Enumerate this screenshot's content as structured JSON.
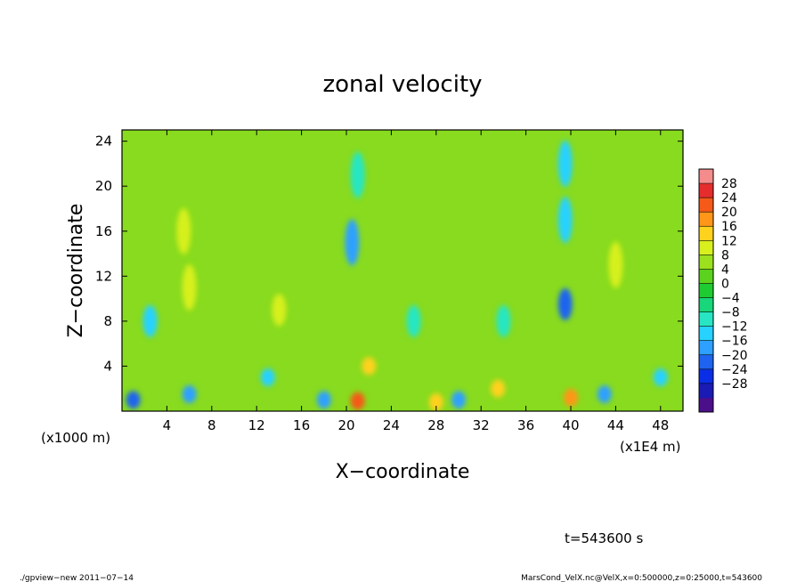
{
  "chart_data": {
    "type": "heatmap",
    "title": "zonal velocity",
    "xlabel": "X−coordinate",
    "ylabel": "Z−coordinate",
    "x_unit": "(x1E4 m)",
    "y_unit": "(x1000 m)",
    "xlim": [
      0,
      50
    ],
    "ylim": [
      0,
      25
    ],
    "x_ticks": [
      4,
      8,
      12,
      16,
      20,
      24,
      28,
      32,
      36,
      40,
      44,
      48
    ],
    "x_tick_labels": [
      "4",
      "8",
      "12",
      "16",
      "20",
      "24",
      "28",
      "32",
      "36",
      "40",
      "44",
      "48"
    ],
    "y_ticks": [
      4,
      8,
      12,
      16,
      20,
      24
    ],
    "y_tick_labels": [
      "4",
      "8",
      "12",
      "16",
      "20",
      "24"
    ],
    "colorbar": {
      "levels": [
        -32,
        -28,
        -24,
        -20,
        -16,
        -12,
        -8,
        -4,
        0,
        4,
        8,
        12,
        16,
        20,
        24,
        28,
        32
      ],
      "labels": [
        "28",
        "24",
        "20",
        "16",
        "12",
        "8",
        "4",
        "0",
        "−4",
        "−8",
        "−12",
        "−16",
        "−20",
        "−24",
        "−28"
      ],
      "colors": [
        "#4b0f8a",
        "#1a1ab4",
        "#0a2de6",
        "#1e64f0",
        "#2ea0ff",
        "#27d2ff",
        "#28e6c3",
        "#18d67a",
        "#1ecc32",
        "#5ad21e",
        "#9be11e",
        "#d7f01e",
        "#ffd21e",
        "#ff9619",
        "#f55a19",
        "#e62d2d",
        "#f58c8c"
      ]
    },
    "features": [
      {
        "x": 21,
        "z": 0.9,
        "value": 24
      },
      {
        "x": 40,
        "z": 1.2,
        "value": 20
      },
      {
        "x": 28,
        "z": 0.8,
        "value": 18
      },
      {
        "x": 6,
        "z": 11,
        "value": 14
      },
      {
        "x": 5.5,
        "z": 16,
        "value": 12
      },
      {
        "x": 44,
        "z": 13,
        "value": 12
      },
      {
        "x": 14,
        "z": 9,
        "value": 12
      },
      {
        "x": 22,
        "z": 4,
        "value": 16
      },
      {
        "x": 33.5,
        "z": 2,
        "value": 16
      },
      {
        "x": 20.5,
        "z": 15,
        "value": -14
      },
      {
        "x": 39.5,
        "z": 9.5,
        "value": -18
      },
      {
        "x": 39.5,
        "z": 17,
        "value": -12
      },
      {
        "x": 39.5,
        "z": 22,
        "value": -10
      },
      {
        "x": 21,
        "z": 21,
        "value": -8
      },
      {
        "x": 1,
        "z": 1,
        "value": -18
      },
      {
        "x": 6,
        "z": 1.5,
        "value": -16
      },
      {
        "x": 30,
        "z": 1,
        "value": -14
      },
      {
        "x": 43,
        "z": 1.5,
        "value": -16
      },
      {
        "x": 18,
        "z": 1,
        "value": -14
      },
      {
        "x": 2.5,
        "z": 8,
        "value": -10
      },
      {
        "x": 26,
        "z": 8,
        "value": -8
      },
      {
        "x": 34,
        "z": 8,
        "value": -8
      },
      {
        "x": 13,
        "z": 3,
        "value": -12
      },
      {
        "x": 48,
        "z": 3,
        "value": -10
      }
    ]
  },
  "annotations": {
    "time": "t=543600 s",
    "footer_left": "./gpview−new   2011−07−14",
    "footer_right": "MarsCond_VelX.nc@VelX,x=0:500000,z=0:25000,t=543600"
  }
}
